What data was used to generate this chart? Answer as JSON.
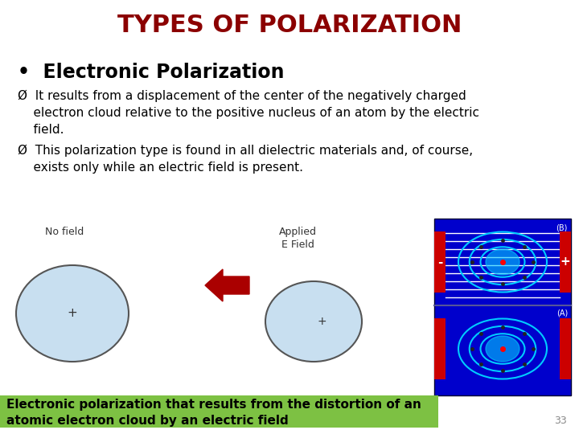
{
  "title": "TYPES OF POLARIZATION",
  "title_color": "#8B0000",
  "title_fontsize": 22,
  "bullet_header": "•  Electronic Polarization",
  "bullet_header_fontsize": 17,
  "bullet_header_color": "#000000",
  "body1": "Ø  It results from a displacement of the center of the negatively charged\n    electron cloud relative to the positive nucleus of an atom by the electric\n    field.",
  "body2": "Ø  This polarization type is found in all dielectric materials and, of course,\n    exists only while an electric field is present.",
  "body_fontsize": 11,
  "body_color": "#000000",
  "caption_text": "Electronic polarization that results from the distortion of an\natomic electron cloud by an electric field",
  "caption_bg": "#7DC143",
  "caption_color": "#000000",
  "caption_fontsize": 11,
  "page_number": "33",
  "bg_color": "#FFFFFF",
  "no_field_label": "No field",
  "applied_label": "Applied\nE Field",
  "arrow_color": "#AA0000",
  "blue_bg": "#0000CC",
  "red_plate": "#CC0000",
  "cyan_cloud": "#00CCFF",
  "atom_fill": "#c8dff0",
  "atom_edge": "#666666"
}
